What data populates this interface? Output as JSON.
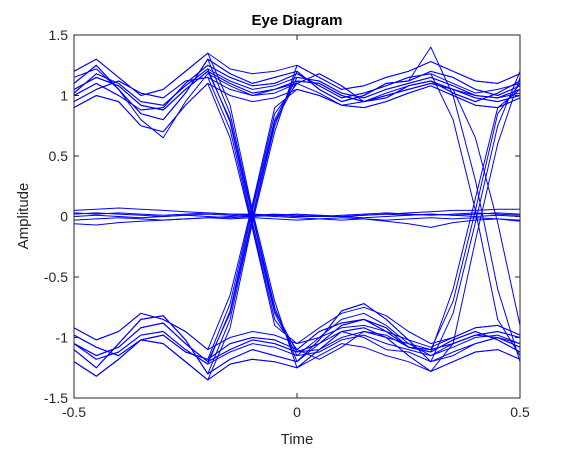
{
  "chart_data": {
    "type": "line",
    "title": "Eye Diagram",
    "xlabel": "Time",
    "ylabel": "Amplitude",
    "xlim": [
      -0.5,
      0.5
    ],
    "ylim": [
      -1.5,
      1.5
    ],
    "xticks": [
      "-0.5",
      "0",
      "0.5"
    ],
    "yticks": [
      "-1.5",
      "-1",
      "-0.5",
      "0",
      "0.5",
      "1",
      "1.5"
    ],
    "grid": false,
    "legend": "none",
    "line_color": "#0000FF",
    "x": [
      -0.5,
      -0.45,
      -0.4,
      -0.35,
      -0.3,
      -0.25,
      -0.2,
      -0.15,
      -0.1,
      -0.05,
      0,
      0.05,
      0.1,
      0.15,
      0.2,
      0.25,
      0.3,
      0.35,
      0.4,
      0.45,
      0.5
    ],
    "series": [
      {
        "values": [
          1.02,
          1.18,
          1.1,
          0.95,
          0.92,
          1.08,
          1.22,
          1.12,
          1.05,
          1.08,
          1.15,
          1.12,
          1.02,
          0.98,
          1.05,
          1.1,
          1.15,
          1.08,
          1.0,
          0.98,
          1.05
        ]
      },
      {
        "values": [
          1.1,
          1.25,
          1.05,
          0.85,
          0.8,
          1.02,
          1.3,
          1.18,
          1.1,
          1.15,
          1.2,
          1.05,
          0.95,
          1.0,
          1.1,
          1.12,
          1.2,
          1.15,
          1.05,
          1.0,
          1.08
        ]
      },
      {
        "values": [
          0.95,
          1.05,
          1.12,
          1.02,
          0.98,
          1.12,
          1.15,
          1.05,
          1.0,
          1.02,
          1.1,
          1.18,
          1.08,
          0.95,
          0.98,
          1.08,
          1.12,
          1.02,
          0.95,
          1.02,
          1.12
        ]
      },
      {
        "values": [
          1.2,
          1.3,
          1.15,
          1.0,
          1.05,
          1.2,
          1.35,
          1.22,
          1.18,
          1.2,
          1.25,
          1.15,
          1.05,
          1.08,
          1.15,
          1.2,
          1.28,
          1.2,
          1.12,
          1.1,
          1.18
        ]
      },
      {
        "values": [
          0.9,
          1.0,
          0.95,
          0.75,
          0.7,
          0.92,
          1.1,
          1.0,
          0.95,
          0.98,
          1.05,
          1.0,
          0.92,
          0.9,
          0.95,
          1.02,
          1.08,
          1.0,
          0.92,
          0.9,
          0.98
        ]
      },
      {
        "values": [
          1.05,
          1.15,
          1.08,
          0.92,
          0.88,
          1.05,
          1.2,
          1.1,
          1.02,
          1.05,
          1.12,
          1.1,
          1.0,
          0.95,
          1.0,
          1.05,
          1.1,
          1.05,
          0.98,
          0.95,
          1.0
        ]
      },
      {
        "values": [
          1.0,
          1.1,
          1.0,
          0.88,
          0.9,
          1.1,
          1.25,
          1.15,
          1.08,
          1.1,
          1.18,
          1.08,
          0.98,
          1.02,
          1.08,
          1.15,
          1.18,
          1.1,
          1.02,
          1.05,
          1.1
        ]
      },
      {
        "values": [
          1.15,
          1.22,
          1.05,
          0.8,
          0.65,
          0.95,
          1.18,
          1.08,
          1.0,
          1.05,
          1.1,
          1.02,
          0.92,
          0.95,
          1.02,
          1.08,
          1.12,
          1.05,
          1.0,
          0.98,
          1.02
        ]
      },
      {
        "values": [
          1.02,
          1.18,
          1.1,
          0.95,
          0.92,
          1.08,
          1.22,
          0.78,
          -0.05,
          -0.8,
          -1.15,
          -1.12,
          -1.02,
          -0.98,
          -1.05,
          -1.1,
          -1.15,
          -1.08,
          -1.0,
          -0.98,
          -1.05
        ]
      },
      {
        "values": [
          1.1,
          1.25,
          1.05,
          0.85,
          0.8,
          1.02,
          1.3,
          0.85,
          0.02,
          -0.75,
          -1.2,
          -1.05,
          -0.95,
          -1.0,
          -1.1,
          -1.12,
          -1.2,
          -1.15,
          -1.05,
          -1.0,
          -1.08
        ]
      },
      {
        "values": [
          0.95,
          1.05,
          1.12,
          1.02,
          0.98,
          1.12,
          1.15,
          0.72,
          -0.08,
          -0.85,
          -1.1,
          -1.18,
          -1.08,
          -0.95,
          -0.98,
          -1.08,
          -1.12,
          -1.02,
          -0.95,
          -1.02,
          -1.12
        ]
      },
      {
        "values": [
          1.2,
          1.3,
          1.15,
          1.0,
          1.05,
          1.2,
          1.35,
          0.92,
          0.05,
          -0.7,
          -1.25,
          -1.15,
          -1.05,
          -1.08,
          -1.15,
          -1.2,
          -1.28,
          -1.2,
          -1.12,
          -1.1,
          -1.18
        ]
      },
      {
        "values": [
          0.9,
          1.0,
          0.95,
          0.75,
          0.7,
          0.92,
          1.1,
          0.65,
          -0.1,
          -0.9,
          -1.05,
          -1.0,
          -0.92,
          -0.9,
          -0.95,
          -1.02,
          -1.08,
          -1.0,
          -0.92,
          -0.9,
          -0.98
        ]
      },
      {
        "values": [
          1.05,
          1.15,
          1.08,
          0.92,
          0.88,
          1.05,
          1.2,
          0.8,
          0.0,
          -0.78,
          -1.12,
          -1.1,
          -1.0,
          -0.95,
          -1.0,
          -1.05,
          -1.1,
          -1.05,
          -0.98,
          -0.95,
          -1.0
        ]
      },
      {
        "values": [
          -1.05,
          -1.18,
          -1.12,
          -0.98,
          -0.95,
          -1.1,
          -1.22,
          -0.78,
          0.05,
          0.8,
          1.15,
          1.12,
          1.02,
          0.98,
          1.05,
          1.1,
          1.15,
          1.08,
          1.0,
          0.98,
          1.05
        ]
      },
      {
        "values": [
          -1.1,
          -1.25,
          -1.05,
          -0.85,
          -0.82,
          -1.02,
          -1.3,
          -0.85,
          -0.02,
          0.75,
          1.2,
          1.05,
          0.95,
          1.0,
          1.1,
          1.12,
          1.2,
          1.15,
          1.05,
          1.0,
          1.08
        ]
      },
      {
        "values": [
          -0.98,
          -1.08,
          -1.15,
          -1.02,
          -0.98,
          -1.12,
          -1.18,
          -0.72,
          0.08,
          0.85,
          1.1,
          1.18,
          1.08,
          0.95,
          0.98,
          1.08,
          1.12,
          1.02,
          0.95,
          1.02,
          1.12
        ]
      },
      {
        "values": [
          -1.2,
          -1.32,
          -1.18,
          -1.02,
          -1.05,
          -1.2,
          -1.35,
          -0.92,
          -0.05,
          0.7,
          1.25,
          1.15,
          1.05,
          1.08,
          1.15,
          1.2,
          1.28,
          1.2,
          1.12,
          1.1,
          1.18
        ]
      },
      {
        "values": [
          -0.92,
          -1.02,
          -0.95,
          -0.8,
          -0.85,
          -0.95,
          -1.1,
          -0.65,
          0.1,
          0.9,
          1.05,
          1.0,
          0.92,
          0.9,
          0.95,
          1.02,
          1.08,
          1.0,
          0.92,
          0.9,
          0.98
        ]
      },
      {
        "values": [
          -1.05,
          -1.15,
          -1.08,
          -0.92,
          -0.88,
          -1.05,
          -1.2,
          -0.8,
          0.0,
          0.78,
          1.12,
          1.1,
          1.0,
          0.95,
          1.0,
          1.05,
          1.1,
          1.05,
          0.98,
          0.95,
          1.0
        ]
      },
      {
        "values": [
          -1.05,
          -1.18,
          -1.12,
          -0.98,
          -0.95,
          -1.1,
          -1.22,
          -1.12,
          -1.05,
          -1.08,
          -1.15,
          -1.0,
          -0.85,
          -0.8,
          -0.9,
          -1.05,
          -1.15,
          -1.05,
          -0.98,
          -1.0,
          -1.05
        ]
      },
      {
        "values": [
          -1.1,
          -1.25,
          -1.05,
          -0.85,
          -0.82,
          -1.02,
          -1.3,
          -1.18,
          -1.1,
          -1.15,
          -1.2,
          -1.02,
          -0.78,
          -0.72,
          -0.85,
          -1.02,
          -1.2,
          -1.12,
          -1.05,
          -1.0,
          -1.08
        ]
      },
      {
        "values": [
          -0.98,
          -1.08,
          -1.15,
          -1.02,
          -0.98,
          -1.12,
          -1.18,
          -1.05,
          -1.0,
          -1.02,
          -1.1,
          -0.95,
          -0.88,
          -0.85,
          -0.92,
          -1.08,
          -1.12,
          -1.02,
          -0.95,
          -1.02,
          -1.12
        ]
      },
      {
        "values": [
          -1.2,
          -1.32,
          -1.18,
          -1.02,
          -1.05,
          -1.2,
          -1.35,
          -1.22,
          -1.18,
          -1.2,
          -1.25,
          -1.1,
          -0.95,
          -0.92,
          -1.0,
          -1.15,
          -1.28,
          -1.2,
          -1.12,
          -1.1,
          -1.18
        ]
      },
      {
        "values": [
          -0.92,
          -1.02,
          -0.95,
          -0.8,
          -0.85,
          -0.95,
          -1.1,
          -1.0,
          -0.95,
          -0.98,
          -1.05,
          -0.92,
          -0.8,
          -0.75,
          -0.82,
          -0.95,
          -1.05,
          -1.0,
          -0.92,
          -0.9,
          -0.98
        ]
      },
      {
        "values": [
          -1.05,
          -1.15,
          -1.08,
          -0.92,
          -0.88,
          -1.05,
          -1.2,
          -1.1,
          -1.02,
          -1.05,
          -1.12,
          -1.05,
          -0.9,
          -0.85,
          -0.95,
          -1.08,
          -1.1,
          -1.05,
          -0.98,
          -0.95,
          -1.0
        ]
      },
      {
        "values": [
          1.05,
          1.15,
          1.08,
          0.92,
          0.88,
          1.05,
          1.2,
          1.1,
          1.02,
          1.05,
          1.12,
          1.1,
          1.0,
          0.95,
          1.0,
          1.05,
          1.1,
          1.05,
          0.65,
          -0.05,
          -0.9
        ]
      },
      {
        "values": [
          1.0,
          1.1,
          1.0,
          0.88,
          0.9,
          1.1,
          1.25,
          1.15,
          1.08,
          1.1,
          1.18,
          1.08,
          0.98,
          1.02,
          1.08,
          1.15,
          1.18,
          0.8,
          0.05,
          -0.85,
          -1.15
        ]
      },
      {
        "values": [
          1.1,
          1.25,
          1.05,
          0.85,
          0.8,
          1.02,
          1.3,
          1.18,
          1.1,
          1.15,
          1.2,
          1.05,
          0.95,
          1.0,
          1.1,
          1.12,
          1.4,
          1.0,
          0.3,
          -0.6,
          -1.2
        ]
      },
      {
        "values": [
          -1.05,
          -1.15,
          -1.08,
          -0.92,
          -0.88,
          -1.05,
          -1.2,
          -1.1,
          -1.02,
          -1.05,
          -1.12,
          -1.05,
          -0.9,
          -0.85,
          -0.95,
          -1.08,
          -1.1,
          -0.7,
          0.05,
          0.85,
          1.1
        ]
      },
      {
        "values": [
          -1.1,
          -1.25,
          -1.05,
          -0.85,
          -0.82,
          -1.02,
          -1.3,
          -1.18,
          -1.1,
          -1.15,
          -1.2,
          -1.02,
          -0.78,
          -0.72,
          -0.85,
          -1.02,
          -1.2,
          -0.8,
          -0.05,
          0.75,
          1.2
        ]
      },
      {
        "values": [
          -0.98,
          -1.08,
          -1.15,
          -1.02,
          -0.98,
          -1.12,
          -1.18,
          -1.05,
          -1.0,
          -1.02,
          -1.1,
          -0.95,
          -0.88,
          -0.85,
          -0.92,
          -1.08,
          -1.12,
          -0.6,
          0.15,
          0.9,
          1.05
        ]
      },
      {
        "values": [
          -1.2,
          -1.32,
          -1.18,
          -1.02,
          -1.05,
          -1.2,
          -1.35,
          -1.22,
          -1.18,
          -1.2,
          -1.25,
          -1.1,
          -0.95,
          -0.92,
          -1.0,
          -1.15,
          -1.28,
          -1.05,
          -0.2,
          0.6,
          1.15
        ]
      },
      {
        "values": [
          0.02,
          0.03,
          0.02,
          0.01,
          0.0,
          0.01,
          0.02,
          0.01,
          0.0,
          0.01,
          0.02,
          0.01,
          0.0,
          0.01,
          0.02,
          0.01,
          0.02,
          0.01,
          0.02,
          0.03,
          0.02
        ]
      },
      {
        "values": [
          -0.03,
          -0.02,
          -0.01,
          -0.02,
          -0.03,
          -0.02,
          -0.01,
          -0.02,
          -0.01,
          -0.02,
          -0.03,
          -0.02,
          -0.01,
          -0.02,
          -0.03,
          -0.02,
          -0.01,
          -0.02,
          -0.01,
          -0.02,
          -0.03
        ]
      },
      {
        "values": [
          0.05,
          0.06,
          0.07,
          0.06,
          0.05,
          0.04,
          0.03,
          0.02,
          0.02,
          0.01,
          0.0,
          0.0,
          0.0,
          0.01,
          0.02,
          0.03,
          0.04,
          0.05,
          0.05,
          0.06,
          0.06
        ]
      },
      {
        "values": [
          -0.06,
          -0.07,
          -0.05,
          -0.04,
          -0.03,
          -0.02,
          -0.01,
          0.0,
          0.01,
          0.0,
          -0.01,
          -0.02,
          -0.03,
          -0.02,
          -0.04,
          -0.06,
          -0.09,
          -0.05,
          -0.03,
          -0.02,
          -0.04
        ]
      },
      {
        "values": [
          0.0,
          0.01,
          0.0,
          -0.01,
          0.0,
          0.01,
          0.0,
          -0.01,
          0.0,
          0.01,
          0.0,
          0.01,
          0.0,
          -0.01,
          0.0,
          0.01,
          0.02,
          0.01,
          0.0,
          0.01,
          0.0
        ]
      },
      {
        "values": [
          0.03,
          0.02,
          0.03,
          0.02,
          0.01,
          0.02,
          0.03,
          0.02,
          0.01,
          0.02,
          0.01,
          0.0,
          0.01,
          0.02,
          0.03,
          0.02,
          0.01,
          0.02,
          0.03,
          0.02,
          0.01
        ]
      }
    ]
  }
}
